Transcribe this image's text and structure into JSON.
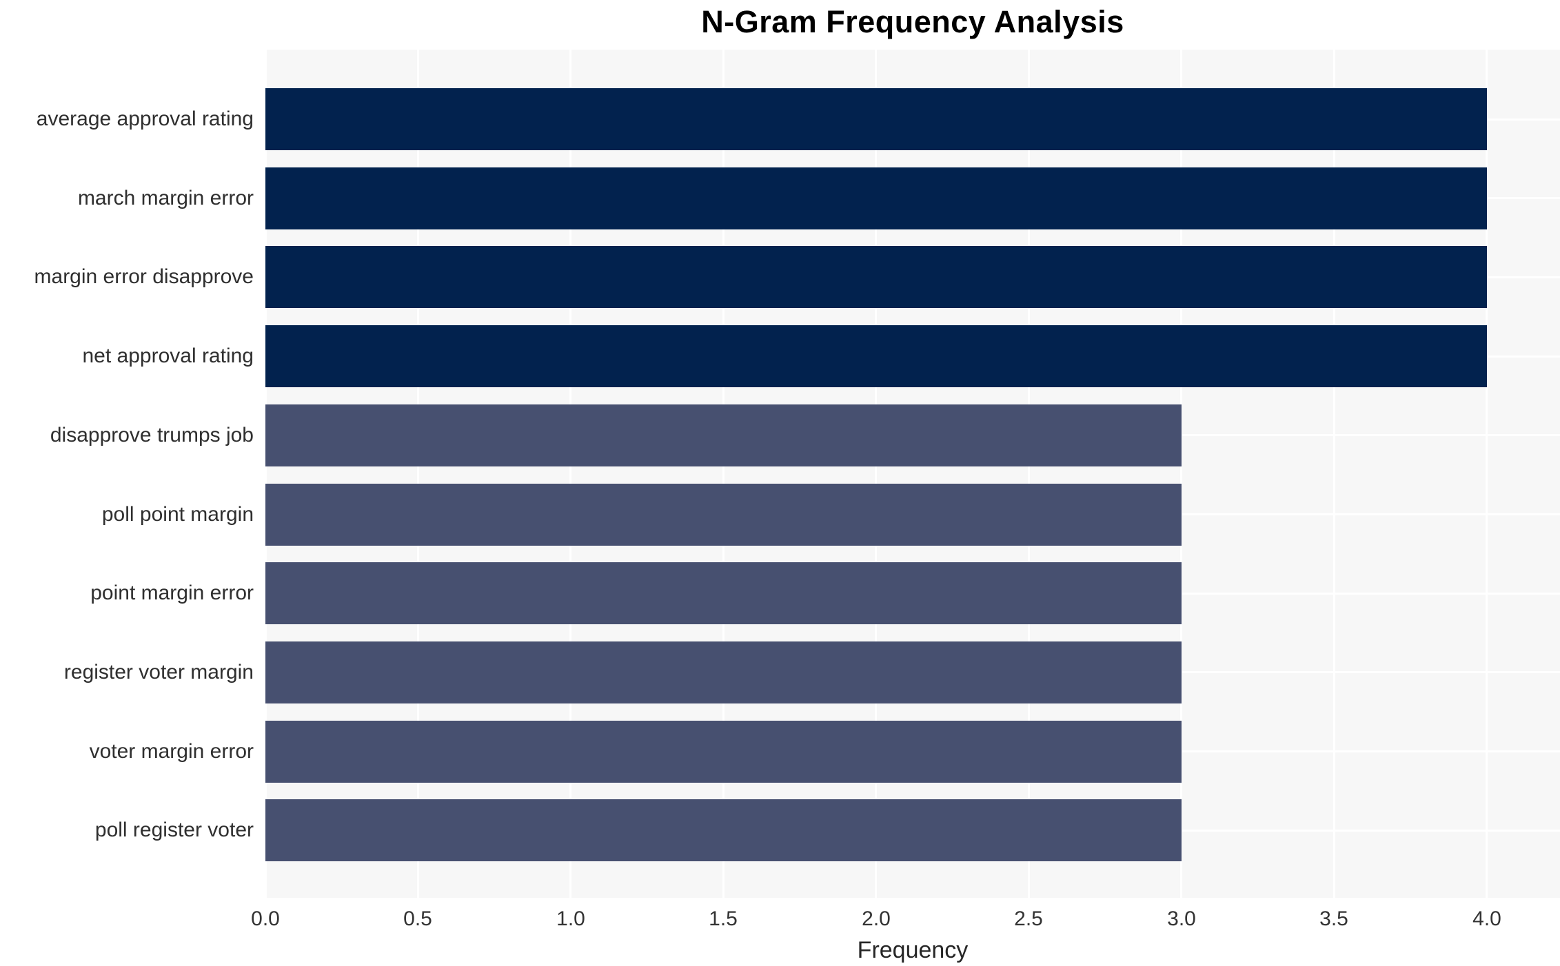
{
  "chart_data": {
    "type": "bar",
    "orientation": "horizontal",
    "title": "N-Gram Frequency Analysis",
    "xlabel": "Frequency",
    "ylabel": "",
    "categories": [
      "average approval rating",
      "march margin error",
      "margin error disapprove",
      "net approval rating",
      "disapprove trumps job",
      "poll point margin",
      "point margin error",
      "register voter margin",
      "voter margin error",
      "poll register voter"
    ],
    "values": [
      4,
      4,
      4,
      4,
      3,
      3,
      3,
      3,
      3,
      3
    ],
    "bar_colors": [
      "#02224e",
      "#02224e",
      "#02224e",
      "#02224e",
      "#475070",
      "#475070",
      "#475070",
      "#475070",
      "#475070",
      "#475070"
    ],
    "x_ticks": [
      0.0,
      0.5,
      1.0,
      1.5,
      2.0,
      2.5,
      3.0,
      3.5,
      4.0
    ],
    "x_tick_labels": [
      "0.0",
      "0.5",
      "1.0",
      "1.5",
      "2.0",
      "2.5",
      "3.0",
      "3.5",
      "4.0"
    ],
    "xlim": [
      0,
      4.24
    ],
    "grid": true,
    "legend": false,
    "plot_background": "#f7f7f7",
    "grid_color": "#ffffff",
    "title_color": "#000000",
    "tick_label_color": "#333333",
    "category_label_color": "#2f2f2f"
  }
}
